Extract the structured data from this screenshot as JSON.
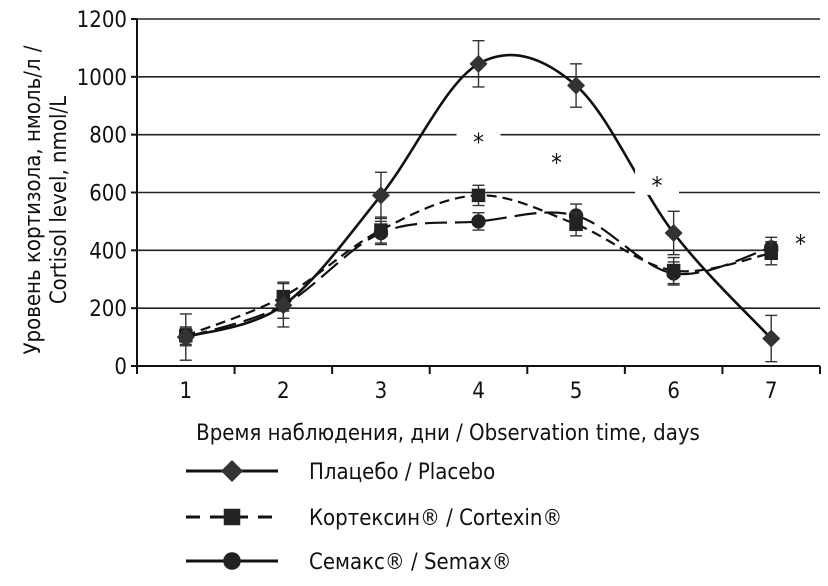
{
  "chart_data": {
    "type": "line",
    "title": "",
    "xlabel": "Время наблюдения, дни   / Observation time, days",
    "ylabel_line1": "Уровень кортизола, нмоль/л /",
    "ylabel_line2": "Cortisol level, nmol/L",
    "x": [
      1,
      2,
      3,
      4,
      5,
      6,
      7
    ],
    "x_tick_labels": [
      "1",
      "2",
      "3",
      "4",
      "5",
      "6",
      "7"
    ],
    "ylim": [
      0,
      1200
    ],
    "y_ticks": [
      0,
      200,
      400,
      600,
      800,
      1000,
      1200
    ],
    "y_tick_labels": [
      "0",
      "200",
      "400",
      "600",
      "800",
      "1000",
      "1200"
    ],
    "grid": true,
    "legend_position": "bottom",
    "series": [
      {
        "name": "Плацебо / Placebo",
        "marker": "diamond",
        "line_style": "solid",
        "values": [
          100,
          210,
          590,
          1045,
          970,
          460,
          95
        ],
        "errors": [
          80,
          75,
          80,
          80,
          75,
          75,
          80
        ]
      },
      {
        "name": "Кортексин® / Cortexin®",
        "marker": "square",
        "line_style": "dashed",
        "values": [
          105,
          240,
          470,
          590,
          490,
          330,
          390
        ],
        "errors": [
          30,
          50,
          45,
          35,
          40,
          45,
          40
        ]
      },
      {
        "name": "Семакс® / Semax®",
        "marker": "circle",
        "line_style": "longdash",
        "values": [
          100,
          210,
          460,
          500,
          520,
          320,
          410
        ],
        "errors": [
          30,
          45,
          40,
          30,
          40,
          40,
          35
        ]
      }
    ],
    "annotations": [
      {
        "text": "*",
        "x": 4,
        "y": 790
      },
      {
        "text": "*",
        "x": 4.8,
        "y": 720
      },
      {
        "text": "*",
        "x": 5.83,
        "y": 640
      },
      {
        "text": "*",
        "x": 7.3,
        "y": 440
      }
    ]
  }
}
